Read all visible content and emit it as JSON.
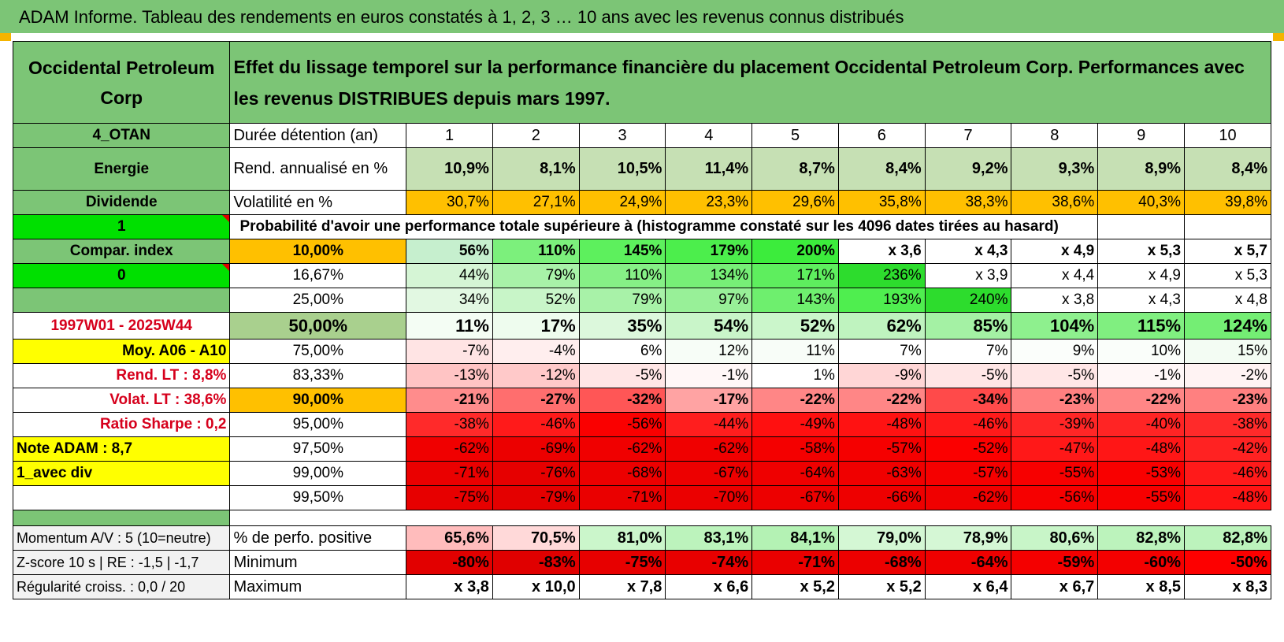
{
  "title": "ADAM Informe. Tableau des rendements en euros constatés à 1, 2, 3 … 10 ans avec les revenus connus distribués",
  "colors": {
    "header_green": "#7cc576",
    "yellow": "#ffff00",
    "orange": "#ffc000",
    "bright_green": "#00e000",
    "label_red": "#d6001c"
  },
  "header": {
    "left": "Occidental Petroleum Corp",
    "main": "Effet du lissage temporel sur la performance financière du placement Occidental Petroleum Corp. Performances avec les revenus DISTRIBUES depuis mars 1997."
  },
  "left_labels": {
    "code": "4_OTAN",
    "sector": "Energie",
    "type": "Dividende",
    "flag1": "1",
    "compar": "Compar. index",
    "flag0": "0",
    "blank": "",
    "period": "1997W01 - 2025W44",
    "moy": "Moy. A06 - A10",
    "rend_lt": "Rend. LT :    8,8%",
    "volat_lt": "Volat. LT :    38,6%",
    "sharpe": "Ratio Sharpe :    0,2",
    "note": "Note ADAM : 8,7",
    "avec_div": "1_avec div",
    "blank2": "",
    "momentum": "Momentum A/V : 5 (10=neutre)",
    "zscore": "Z-score 10 s | RE : -1,5 | -1,7",
    "regularite": "Régularité croiss. : 0,0 / 20"
  },
  "row_labels": {
    "duree": "Durée détention (an)",
    "rend": "Rend. annualisé en %",
    "vol": "Volatilité en %",
    "proba": "Probabilité d'avoir une performance totale supérieure à (histogramme constaté sur les 4096 dates tirées au hasard)",
    "positive": "% de perfo. positive",
    "minimum": "Minimum",
    "maximum": "Maximum"
  },
  "years": [
    "1",
    "2",
    "3",
    "4",
    "5",
    "6",
    "7",
    "8",
    "9",
    "10"
  ],
  "rend": [
    "10,9%",
    "8,1%",
    "10,5%",
    "11,4%",
    "8,7%",
    "8,4%",
    "9,2%",
    "9,3%",
    "8,9%",
    "8,4%"
  ],
  "vol": [
    "30,7%",
    "27,1%",
    "24,9%",
    "23,3%",
    "29,6%",
    "35,8%",
    "38,3%",
    "38,6%",
    "40,3%",
    "39,8%"
  ],
  "quantiles": [
    {
      "p": "10,00%",
      "bold": true,
      "pbg": "#ffc000",
      "v": [
        "56%",
        "110%",
        "145%",
        "179%",
        "200%",
        "x 3,6",
        "x 4,3",
        "x 4,9",
        "x 5,3",
        "x 5,7"
      ],
      "bg": [
        "#c6efce",
        "#7cf07c",
        "#5df05d",
        "#4cee4c",
        "#3cec3c",
        "#ffffff",
        "#ffffff",
        "#ffffff",
        "#ffffff",
        "#ffffff"
      ]
    },
    {
      "p": "16,67%",
      "bold": false,
      "pbg": "#ffffff",
      "v": [
        "44%",
        "79%",
        "110%",
        "134%",
        "171%",
        "236%",
        "x 3,9",
        "x 4,4",
        "x 4,9",
        "x 5,3"
      ],
      "bg": [
        "#d5f5d5",
        "#a8f2a8",
        "#86f086",
        "#77ef77",
        "#5eee5e",
        "#2ddc2d",
        "#ffffff",
        "#ffffff",
        "#ffffff",
        "#ffffff"
      ]
    },
    {
      "p": "25,00%",
      "bold": false,
      "pbg": "#ffffff",
      "v": [
        "34%",
        "52%",
        "79%",
        "97%",
        "143%",
        "193%",
        "240%",
        "x 3,8",
        "x 4,3",
        "x 4,8"
      ],
      "bg": [
        "#e2f8e2",
        "#c8f5c8",
        "#a8f2a8",
        "#98f098",
        "#6eef6e",
        "#4fee4f",
        "#2ddc2d",
        "#ffffff",
        "#ffffff",
        "#ffffff"
      ]
    },
    {
      "p": "50,00%",
      "bold": true,
      "big": true,
      "pbg": "#a9d08e",
      "v": [
        "11%",
        "17%",
        "35%",
        "54%",
        "52%",
        "62%",
        "85%",
        "104%",
        "115%",
        "124%"
      ],
      "bg": [
        "#f4fdf4",
        "#eefcee",
        "#dcf8dc",
        "#c9f5c9",
        "#cbf6cb",
        "#bff3bf",
        "#a4f1a4",
        "#8ef08e",
        "#80ef80",
        "#74ee74"
      ]
    },
    {
      "p": "75,00%",
      "bold": false,
      "pbg": "#ffffff",
      "v": [
        "-7%",
        "-4%",
        "6%",
        "12%",
        "11%",
        "7%",
        "7%",
        "9%",
        "10%",
        "15%"
      ],
      "bg": [
        "#ffe4e4",
        "#ffeeee",
        "#ffffff",
        "#f7fdf7",
        "#f8fdf8",
        "#ffffff",
        "#ffffff",
        "#fbfefb",
        "#fafefa",
        "#f3fcf3"
      ]
    },
    {
      "p": "83,33%",
      "bold": false,
      "pbg": "#ffffff",
      "v": [
        "-13%",
        "-12%",
        "-5%",
        "-1%",
        "1%",
        "-9%",
        "-5%",
        "-5%",
        "-1%",
        "-2%"
      ],
      "bg": [
        "#ffc4c4",
        "#ffc9c9",
        "#ffe6e6",
        "#fff7f7",
        "#ffffff",
        "#ffd6d6",
        "#ffe6e6",
        "#ffe6e6",
        "#fff7f7",
        "#fff3f3"
      ]
    },
    {
      "p": "90,00%",
      "bold": true,
      "pbg": "#ffc000",
      "v": [
        "-21%",
        "-27%",
        "-32%",
        "-17%",
        "-22%",
        "-22%",
        "-34%",
        "-23%",
        "-22%",
        "-23%"
      ],
      "bg": [
        "#ff8c8c",
        "#ff6e6e",
        "#ff5656",
        "#ffa3a3",
        "#ff8686",
        "#ff8686",
        "#ff4a4a",
        "#ff8080",
        "#ff8686",
        "#ff8080"
      ]
    },
    {
      "p": "95,00%",
      "bold": false,
      "pbg": "#ffffff",
      "v": [
        "-38%",
        "-46%",
        "-56%",
        "-44%",
        "-49%",
        "-48%",
        "-46%",
        "-39%",
        "-40%",
        "-38%"
      ],
      "bg": [
        "#ff2a2a",
        "#ff1a1a",
        "#fa0000",
        "#ff1e1e",
        "#ff1010",
        "#ff1212",
        "#ff1a1a",
        "#ff2626",
        "#ff2424",
        "#ff2a2a"
      ]
    },
    {
      "p": "97,50%",
      "bold": false,
      "pbg": "#ffffff",
      "v": [
        "-62%",
        "-69%",
        "-62%",
        "-62%",
        "-58%",
        "-57%",
        "-52%",
        "-47%",
        "-48%",
        "-42%"
      ],
      "bg": [
        "#f00000",
        "#ec0000",
        "#f00000",
        "#f00000",
        "#f40000",
        "#f50000",
        "#fb0000",
        "#ff1818",
        "#ff1616",
        "#ff2222"
      ]
    },
    {
      "p": "99,00%",
      "bold": false,
      "pbg": "#ffffff",
      "v": [
        "-71%",
        "-76%",
        "-68%",
        "-67%",
        "-64%",
        "-63%",
        "-57%",
        "-55%",
        "-53%",
        "-46%"
      ],
      "bg": [
        "#ea0000",
        "#e60000",
        "#ec0000",
        "#ed0000",
        "#ef0000",
        "#f00000",
        "#f50000",
        "#f70000",
        "#f90000",
        "#ff1a1a"
      ]
    },
    {
      "p": "99,50%",
      "bold": false,
      "pbg": "#ffffff",
      "v": [
        "-75%",
        "-79%",
        "-71%",
        "-70%",
        "-67%",
        "-66%",
        "-62%",
        "-56%",
        "-55%",
        "-48%"
      ],
      "bg": [
        "#e70000",
        "#e40000",
        "#ea0000",
        "#eb0000",
        "#ed0000",
        "#ee0000",
        "#f00000",
        "#f60000",
        "#f70000",
        "#ff1414"
      ]
    }
  ],
  "positive": [
    "65,6%",
    "70,5%",
    "81,0%",
    "83,1%",
    "84,1%",
    "79,0%",
    "78,9%",
    "80,6%",
    "82,8%",
    "82,8%"
  ],
  "positive_bg": [
    "#ffbcbc",
    "#ffd9d9",
    "#cbf6cb",
    "#bcf3bc",
    "#b4f2b4",
    "#d4f7d4",
    "#d5f7d5",
    "#c8f5c8",
    "#bcf3bc",
    "#bcf3bc"
  ],
  "minimum": [
    "-80%",
    "-83%",
    "-75%",
    "-74%",
    "-71%",
    "-68%",
    "-64%",
    "-59%",
    "-60%",
    "-50%"
  ],
  "minimum_bg": [
    "#e20000",
    "#e00000",
    "#e70000",
    "#e80000",
    "#ea0000",
    "#ec0000",
    "#ef0000",
    "#f40000",
    "#f30000",
    "#fd0000"
  ],
  "maximum": [
    "x 3,8",
    "x 10,0",
    "x 7,8",
    "x 6,6",
    "x 5,2",
    "x 5,2",
    "x 6,4",
    "x 6,7",
    "x 8,5",
    "x 8,3"
  ]
}
